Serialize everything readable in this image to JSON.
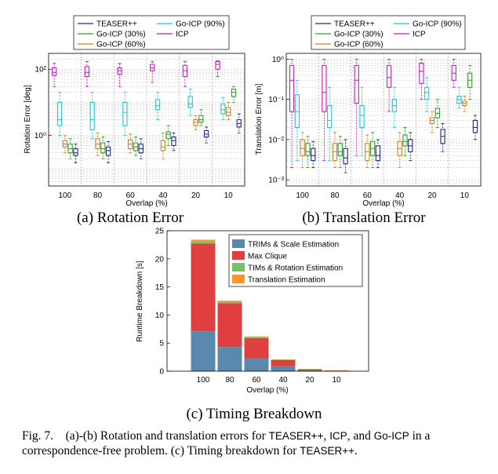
{
  "colors": {
    "teaser": "#1f2a8c",
    "goicp30": "#2ca02c",
    "goicp60": "#d4801a",
    "goicp90": "#22c5d6",
    "icp": "#c21dbf"
  },
  "caption": {
    "label": "Fig. 7.",
    "seg1": "(a)-(b) Rotation and translation errors for ",
    "teaser1": "TEASER++",
    "seg2": ", ",
    "icp": "ICP",
    "seg3": ", and ",
    "goicp": "Go-ICP",
    "seg4": " in a correspondence-free problem. (c) Timing breakdown for ",
    "teaser2": "TEASER++",
    "seg5": "."
  },
  "chart_data": [
    {
      "type": "box",
      "id": "a",
      "subtitle": "(a)  Rotation Error",
      "ylabel": "Rotation Error [deg]",
      "xlabel": "Overlap (%)",
      "yscale": "log",
      "ylim": [
        0.03,
        300
      ],
      "yticks": [
        {
          "v": 1,
          "label": "10⁰"
        },
        {
          "v": 100,
          "label": "10²"
        }
      ],
      "categories": [
        "100",
        "80",
        "60",
        "40",
        "20",
        "10"
      ],
      "legend": {
        "items": [
          "TEASER++",
          "Go-ICP (90%)",
          "Go-ICP (30%)",
          "ICP",
          "Go-ICP (60%)"
        ]
      },
      "series": [
        {
          "name": "ICP",
          "boxes": [
            {
              "lo": 30,
              "q1": 65,
              "med": 80,
              "q3": 110,
              "hi": 150
            },
            {
              "lo": 30,
              "q1": 60,
              "med": 80,
              "q3": 120,
              "hi": 170
            },
            {
              "lo": 30,
              "q1": 70,
              "med": 90,
              "q3": 110,
              "hi": 150
            },
            {
              "lo": 40,
              "q1": 90,
              "med": 110,
              "q3": 140,
              "hi": 170
            },
            {
              "lo": 30,
              "q1": 60,
              "med": 90,
              "q3": 130,
              "hi": 170
            },
            {
              "lo": 60,
              "q1": 100,
              "med": 140,
              "q3": 170,
              "hi": 180
            }
          ]
        },
        {
          "name": "Go-ICP (90%)",
          "boxes": [
            {
              "lo": 1,
              "q1": 2,
              "med": 3,
              "q3": 10,
              "hi": 20
            },
            {
              "lo": 0.8,
              "q1": 1.5,
              "med": 3,
              "q3": 10,
              "hi": 20
            },
            {
              "lo": 1,
              "q1": 2,
              "med": 5,
              "q3": 10,
              "hi": 20
            },
            {
              "lo": 3,
              "q1": 6,
              "med": 8,
              "q3": 12,
              "hi": 20
            },
            {
              "lo": 4,
              "q1": 7,
              "med": 9,
              "q3": 15,
              "hi": 25
            },
            {
              "lo": 3,
              "q1": 4.5,
              "med": 6,
              "q3": 9,
              "hi": 14
            }
          ]
        },
        {
          "name": "Go-ICP (60%)",
          "boxes": [
            {
              "lo": 0.3,
              "q1": 0.45,
              "med": 0.55,
              "q3": 0.7,
              "hi": 1
            },
            {
              "lo": 0.25,
              "q1": 0.4,
              "med": 0.55,
              "q3": 0.8,
              "hi": 1.2
            },
            {
              "lo": 0.3,
              "q1": 0.4,
              "med": 0.55,
              "q3": 0.75,
              "hi": 1.1
            },
            {
              "lo": 0.2,
              "q1": 0.35,
              "med": 0.45,
              "q3": 0.7,
              "hi": 1.2
            },
            {
              "lo": 1.5,
              "q1": 2,
              "med": 2.5,
              "q3": 3,
              "hi": 4
            },
            {
              "lo": 3,
              "q1": 4,
              "med": 5,
              "q3": 7,
              "hi": 10
            }
          ]
        },
        {
          "name": "Go-ICP (30%)",
          "boxes": [
            {
              "lo": 0.2,
              "q1": 0.3,
              "med": 0.4,
              "q3": 0.55,
              "hi": 0.8
            },
            {
              "lo": 0.2,
              "q1": 0.3,
              "med": 0.4,
              "q3": 0.6,
              "hi": 0.9
            },
            {
              "lo": 0.25,
              "q1": 0.35,
              "med": 0.45,
              "q3": 0.6,
              "hi": 0.9
            },
            {
              "lo": 0.5,
              "q1": 0.8,
              "med": 1.1,
              "q3": 1.3,
              "hi": 2
            },
            {
              "lo": 2,
              "q1": 2.5,
              "med": 3,
              "q3": 4,
              "hi": 6
            },
            {
              "lo": 10,
              "q1": 15,
              "med": 20,
              "q3": 25,
              "hi": 30
            }
          ]
        },
        {
          "name": "TEASER++",
          "boxes": [
            {
              "lo": 0.15,
              "q1": 0.25,
              "med": 0.3,
              "q3": 0.4,
              "hi": 0.55
            },
            {
              "lo": 0.15,
              "q1": 0.25,
              "med": 0.35,
              "q3": 0.45,
              "hi": 0.65
            },
            {
              "lo": 0.2,
              "q1": 0.3,
              "med": 0.4,
              "q3": 0.55,
              "hi": 0.8
            },
            {
              "lo": 0.35,
              "q1": 0.5,
              "med": 0.7,
              "q3": 0.9,
              "hi": 1.2
            },
            {
              "lo": 0.6,
              "q1": 0.9,
              "med": 1.1,
              "q3": 1.4,
              "hi": 1.8
            },
            {
              "lo": 1.2,
              "q1": 1.8,
              "med": 2.3,
              "q3": 3,
              "hi": 4.5
            }
          ]
        }
      ]
    },
    {
      "type": "box",
      "id": "b",
      "subtitle": "(b)  Translation Error",
      "ylabel": "Translation Error [m]",
      "xlabel": "Overlap (%)",
      "yscale": "log",
      "ylim": [
        0.0007,
        1.4
      ],
      "yticks": [
        {
          "v": 0.001,
          "label": "10⁻³"
        },
        {
          "v": 0.01,
          "label": "10⁻²"
        },
        {
          "v": 0.1,
          "label": "10⁻¹"
        },
        {
          "v": 1,
          "label": "10⁰"
        }
      ],
      "categories": [
        "100",
        "80",
        "60",
        "40",
        "20",
        "10"
      ],
      "legend": {
        "items": [
          "TEASER++",
          "Go-ICP (90%)",
          "Go-ICP (30%)",
          "ICP",
          "Go-ICP (60%)"
        ]
      },
      "series": [
        {
          "name": "ICP",
          "boxes": [
            {
              "lo": 0.002,
              "q1": 0.05,
              "med": 0.3,
              "q3": 0.7,
              "hi": 1
            },
            {
              "lo": 0.003,
              "q1": 0.05,
              "med": 0.15,
              "q3": 0.7,
              "hi": 1
            },
            {
              "lo": 0.004,
              "q1": 0.08,
              "med": 0.3,
              "q3": 0.7,
              "hi": 1
            },
            {
              "lo": 0.05,
              "q1": 0.2,
              "med": 0.35,
              "q3": 0.7,
              "hi": 1
            },
            {
              "lo": 0.1,
              "q1": 0.25,
              "med": 0.5,
              "q3": 0.8,
              "hi": 1
            },
            {
              "lo": 0.2,
              "q1": 0.3,
              "med": 0.45,
              "q3": 0.7,
              "hi": 1
            }
          ]
        },
        {
          "name": "Go-ICP (90%)",
          "boxes": [
            {
              "lo": 0.003,
              "q1": 0.02,
              "med": 0.05,
              "q3": 0.13,
              "hi": 0.3
            },
            {
              "lo": 0.003,
              "q1": 0.02,
              "med": 0.03,
              "q3": 0.07,
              "hi": 0.2
            },
            {
              "lo": 0.004,
              "q1": 0.02,
              "med": 0.04,
              "q3": 0.07,
              "hi": 0.2
            },
            {
              "lo": 0.02,
              "q1": 0.05,
              "med": 0.07,
              "q3": 0.1,
              "hi": 0.2
            },
            {
              "lo": 0.05,
              "q1": 0.1,
              "med": 0.15,
              "q3": 0.2,
              "hi": 0.35
            },
            {
              "lo": 0.06,
              "q1": 0.08,
              "med": 0.1,
              "q3": 0.12,
              "hi": 0.2
            }
          ]
        },
        {
          "name": "Go-ICP (60%)",
          "boxes": [
            {
              "lo": 0.002,
              "q1": 0.004,
              "med": 0.006,
              "q3": 0.01,
              "hi": 0.015
            },
            {
              "lo": 0.002,
              "q1": 0.003,
              "med": 0.005,
              "q3": 0.008,
              "hi": 0.015
            },
            {
              "lo": 0.002,
              "q1": 0.003,
              "med": 0.005,
              "q3": 0.008,
              "hi": 0.013
            },
            {
              "lo": 0.002,
              "q1": 0.004,
              "med": 0.006,
              "q3": 0.009,
              "hi": 0.015
            },
            {
              "lo": 0.015,
              "q1": 0.025,
              "med": 0.03,
              "q3": 0.035,
              "hi": 0.05
            },
            {
              "lo": 0.05,
              "q1": 0.07,
              "med": 0.08,
              "q3": 0.09,
              "hi": 0.12
            }
          ]
        },
        {
          "name": "Go-ICP (30%)",
          "boxes": [
            {
              "lo": 0.002,
              "q1": 0.004,
              "med": 0.005,
              "q3": 0.008,
              "hi": 0.012
            },
            {
              "lo": 0.002,
              "q1": 0.004,
              "med": 0.005,
              "q3": 0.008,
              "hi": 0.012
            },
            {
              "lo": 0.002,
              "q1": 0.004,
              "med": 0.006,
              "q3": 0.009,
              "hi": 0.015
            },
            {
              "lo": 0.004,
              "q1": 0.007,
              "med": 0.009,
              "q3": 0.013,
              "hi": 0.02
            },
            {
              "lo": 0.02,
              "q1": 0.035,
              "med": 0.045,
              "q3": 0.06,
              "hi": 0.1
            },
            {
              "lo": 0.1,
              "q1": 0.2,
              "med": 0.3,
              "q3": 0.45,
              "hi": 0.7
            }
          ]
        },
        {
          "name": "TEASER++",
          "boxes": [
            {
              "lo": 0.002,
              "q1": 0.003,
              "med": 0.004,
              "q3": 0.006,
              "hi": 0.009
            },
            {
              "lo": 0.0015,
              "q1": 0.0025,
              "med": 0.0035,
              "q3": 0.006,
              "hi": 0.01
            },
            {
              "lo": 0.002,
              "q1": 0.003,
              "med": 0.004,
              "q3": 0.007,
              "hi": 0.01
            },
            {
              "lo": 0.003,
              "q1": 0.005,
              "med": 0.007,
              "q3": 0.01,
              "hi": 0.015
            },
            {
              "lo": 0.005,
              "q1": 0.008,
              "med": 0.012,
              "q3": 0.018,
              "hi": 0.025
            },
            {
              "lo": 0.01,
              "q1": 0.015,
              "med": 0.02,
              "q3": 0.03,
              "hi": 0.04
            }
          ]
        }
      ]
    },
    {
      "type": "stacked_bar",
      "id": "c",
      "subtitle": "(c)  Timing Breakdown",
      "ylabel": "Runtime Breakdown [s]",
      "xlabel": "Overlap (%)",
      "ylim": [
        0,
        25
      ],
      "yticks": [
        0,
        5,
        10,
        15,
        20,
        25
      ],
      "categories": [
        "100",
        "80",
        "60",
        "40",
        "20",
        "10"
      ],
      "series": [
        {
          "name": "TRIMs & Scale Estimation",
          "color": "#5b89ad",
          "values": [
            7.1,
            4.3,
            2.3,
            0.9,
            0.15,
            0.05
          ]
        },
        {
          "name": "Max Clique",
          "color": "#e03f3f",
          "values": [
            15.6,
            7.8,
            3.6,
            1.1,
            0.2,
            0.08
          ]
        },
        {
          "name": "TIMs & Rotation Estimation",
          "color": "#79bf63",
          "values": [
            0.4,
            0.25,
            0.15,
            0.05,
            0.03,
            0.02
          ]
        },
        {
          "name": "Translation Estimation",
          "color": "#f5972e",
          "values": [
            0.3,
            0.2,
            0.15,
            0.05,
            0.03,
            0.02
          ]
        }
      ]
    }
  ]
}
